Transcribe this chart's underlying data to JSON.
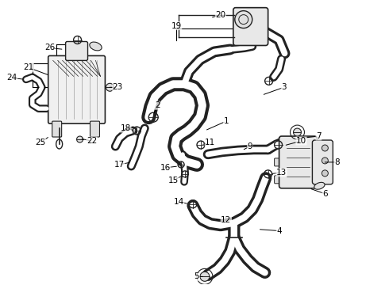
{
  "background_color": "#ffffff",
  "line_color": "#222222",
  "text_color": "#000000",
  "figsize": [
    4.9,
    3.6
  ],
  "dpi": 100
}
